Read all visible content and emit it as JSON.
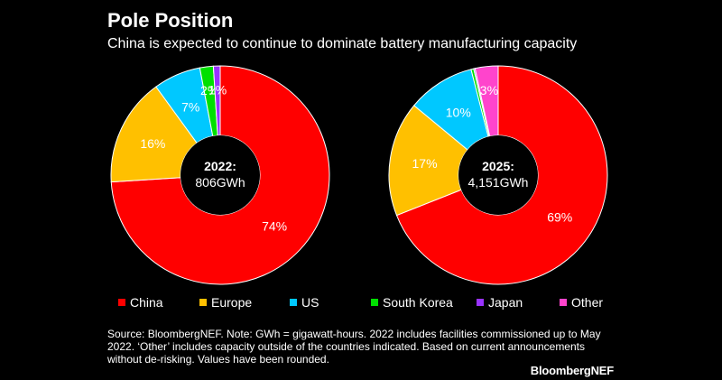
{
  "header": {
    "title": "Pole Position",
    "subtitle": "China is expected to continue to dominate battery manufacturing capacity"
  },
  "legend": {
    "items": [
      {
        "label": "China",
        "color": "#ff0000"
      },
      {
        "label": "Europe",
        "color": "#ffc000"
      },
      {
        "label": "US",
        "color": "#00c8ff"
      },
      {
        "label": "South Korea",
        "color": "#00e000"
      },
      {
        "label": "Japan",
        "color": "#9933ff"
      },
      {
        "label": "Other",
        "color": "#ff44cc"
      }
    ]
  },
  "chart_data": [
    {
      "type": "pie",
      "subtype": "donut",
      "center_year": "2022:",
      "center_value": "806GWh",
      "slices": [
        {
          "name": "China",
          "value": 74,
          "label": "74%",
          "color": "#ff0000"
        },
        {
          "name": "Europe",
          "value": 16,
          "label": "16%",
          "color": "#ffc000"
        },
        {
          "name": "US",
          "value": 7,
          "label": "7%",
          "color": "#00c8ff"
        },
        {
          "name": "South Korea",
          "value": 2,
          "label": "2%",
          "color": "#00e000"
        },
        {
          "name": "Japan",
          "value": 1,
          "label": "1%",
          "color": "#9933ff"
        }
      ]
    },
    {
      "type": "pie",
      "subtype": "donut",
      "center_year": "2025:",
      "center_value": "4,151GWh",
      "slices": [
        {
          "name": "China",
          "value": 69,
          "label": "69%",
          "color": "#ff0000"
        },
        {
          "name": "Europe",
          "value": 17,
          "label": "17%",
          "color": "#ffc000"
        },
        {
          "name": "US",
          "value": 10,
          "label": "10%",
          "color": "#00c8ff"
        },
        {
          "name": "South Korea",
          "value": 0.4,
          "label": "",
          "color": "#00e000"
        },
        {
          "name": "Japan",
          "value": 0.2,
          "label": "",
          "color": "#9933ff"
        },
        {
          "name": "Other",
          "value": 3.4,
          "label": "3%",
          "color": "#ff44cc"
        }
      ]
    }
  ],
  "footer": {
    "note": "Source: BloombergNEF. Note: GWh = gigawatt-hours. 2022 includes facilities commissioned up to May 2022.  ‘Other’ includes capacity outside of the countries indicated. Based on current announcements without de-risking. Values have been rounded.",
    "brand": "BloombergNEF"
  }
}
